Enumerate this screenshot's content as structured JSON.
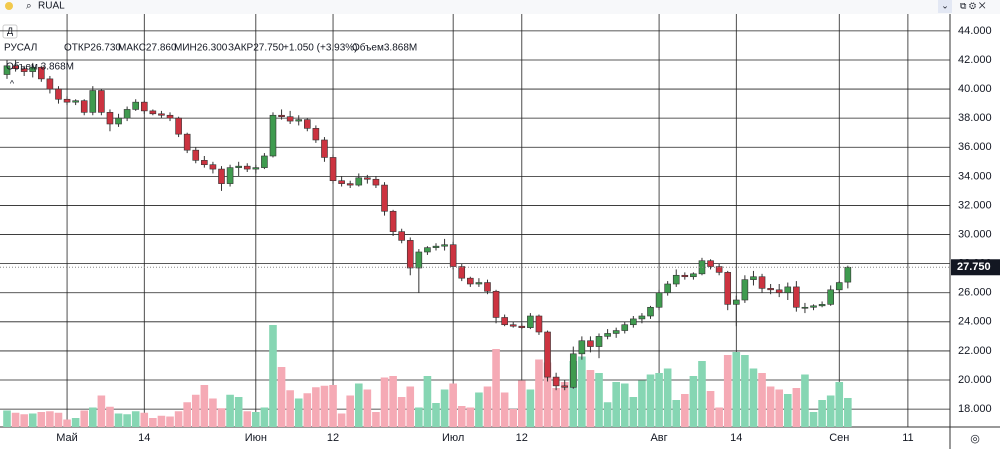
{
  "toolbar": {
    "search": "RUAL",
    "interval_button": "Д"
  },
  "legend": {
    "symbol": "РУСАЛ",
    "open": "ОТКР26.730",
    "high": "МАКС27.860",
    "low": "МИН26.300",
    "close": "ЗАКР27.750",
    "change": "+1.050 (+3.93%)",
    "volume": "Объем3.868M",
    "volume_label": "Объем 3.868M"
  },
  "chart_data": {
    "type": "candlestick",
    "name": "РУСАЛ",
    "categories": [
      null,
      null,
      null,
      null,
      null,
      null,
      null,
      "Май",
      null,
      null,
      null,
      null,
      null,
      null,
      null,
      null,
      "14",
      null,
      null,
      null,
      null,
      null,
      null,
      null,
      null,
      null,
      null,
      null,
      null,
      "Июн",
      null,
      null,
      null,
      null,
      null,
      null,
      null,
      null,
      "12",
      null,
      null,
      null,
      null,
      null,
      null,
      null,
      null,
      null,
      null,
      null,
      null,
      null,
      "Июл",
      null,
      null,
      null,
      null,
      null,
      null,
      null,
      "12",
      null,
      null,
      null,
      null,
      null,
      null,
      null,
      null,
      null,
      null,
      null,
      null,
      null,
      null,
      null,
      "Авг",
      null,
      null,
      null,
      null,
      null,
      null,
      null,
      null,
      "14",
      null,
      null,
      null,
      null,
      null,
      null,
      null,
      null,
      null,
      null,
      null,
      "Сен",
      null,
      null,
      null,
      null,
      null,
      null,
      null,
      "11"
    ],
    "open": [
      41.0,
      41.6,
      41.4,
      41.2,
      41.5,
      40.7,
      40.0,
      39.3,
      39.1,
      39.2,
      38.4,
      39.9,
      38.4,
      37.6,
      38.0,
      38.6,
      39.1,
      38.5,
      38.3,
      38.2,
      38.0,
      36.9,
      35.8,
      35.1,
      34.8,
      34.5,
      33.5,
      34.6,
      34.7,
      34.5,
      34.6,
      35.4,
      38.2,
      38.1,
      37.8,
      37.9,
      37.3,
      36.5,
      35.3,
      33.7,
      33.5,
      33.4,
      33.9,
      33.8,
      33.4,
      31.6,
      30.2,
      29.6,
      27.7,
      28.8,
      29.1,
      29.2,
      29.3,
      27.8,
      27.0,
      26.6,
      26.7,
      26.1,
      24.3,
      23.8,
      23.7,
      23.6,
      24.4,
      23.3,
      20.2,
      19.6,
      19.5,
      21.8,
      22.7,
      22.3,
      23.0,
      23.2,
      23.4,
      23.8,
      24.2,
      24.4,
      25.0,
      26.0,
      26.6,
      27.2,
      27.1,
      27.3,
      28.2,
      27.8,
      27.4,
      25.2,
      25.5,
      26.9,
      27.1,
      26.3,
      26.2,
      26.0,
      26.4,
      25.0,
      25.0,
      25.1,
      25.2,
      26.2,
      26.73,
      null,
      null,
      null,
      null,
      null,
      null,
      null
    ],
    "high": [
      42.0,
      42.0,
      41.6,
      41.8,
      41.6,
      40.9,
      40.2,
      39.5,
      39.3,
      39.3,
      40.2,
      40.0,
      38.6,
      38.3,
      38.8,
      39.3,
      39.2,
      38.6,
      38.5,
      38.4,
      38.1,
      37.0,
      36.0,
      35.4,
      35.0,
      34.7,
      34.8,
      35.0,
      34.9,
      34.8,
      35.6,
      38.4,
      38.6,
      38.5,
      38.2,
      38.0,
      37.5,
      36.7,
      35.5,
      34.0,
      33.7,
      34.2,
      34.1,
      34.0,
      33.6,
      31.7,
      30.4,
      29.8,
      29.0,
      29.2,
      29.4,
      29.7,
      29.5,
      28.0,
      27.1,
      27.0,
      26.9,
      26.2,
      24.5,
      24.0,
      23.9,
      24.6,
      24.5,
      23.4,
      20.5,
      20.0,
      22.3,
      23.0,
      23.0,
      23.2,
      23.5,
      23.6,
      24.0,
      24.4,
      24.6,
      25.1,
      26.2,
      26.8,
      27.6,
      27.4,
      27.4,
      28.4,
      28.3,
      28.0,
      27.5,
      25.8,
      27.2,
      27.5,
      27.3,
      26.6,
      26.6,
      26.7,
      26.8,
      25.3,
      25.2,
      25.4,
      26.5,
      26.8,
      27.86,
      null,
      null,
      null,
      null,
      null,
      null,
      null
    ],
    "low": [
      40.7,
      41.2,
      40.9,
      40.8,
      40.5,
      39.7,
      39.0,
      38.9,
      38.9,
      38.2,
      38.2,
      38.2,
      37.1,
      37.4,
      37.8,
      38.5,
      38.3,
      38.2,
      38.0,
      37.8,
      36.7,
      35.6,
      34.9,
      34.6,
      34.2,
      33.0,
      33.3,
      34.0,
      34.3,
      34.2,
      34.5,
      35.3,
      37.9,
      37.6,
      37.5,
      37.1,
      36.3,
      35.0,
      33.5,
      33.3,
      33.2,
      33.3,
      33.5,
      33.2,
      31.3,
      29.9,
      29.4,
      27.2,
      26.0,
      28.6,
      28.9,
      28.9,
      27.6,
      26.8,
      26.4,
      26.4,
      25.9,
      23.9,
      23.7,
      23.6,
      23.5,
      23.5,
      23.1,
      19.9,
      19.3,
      19.3,
      19.4,
      21.4,
      21.9,
      21.5,
      22.8,
      22.9,
      23.2,
      23.6,
      23.9,
      24.2,
      24.8,
      25.8,
      26.4,
      26.9,
      26.9,
      27.2,
      27.6,
      27.2,
      24.8,
      23.7,
      25.3,
      26.5,
      26.0,
      25.9,
      25.7,
      25.5,
      24.7,
      24.6,
      24.8,
      25.0,
      25.1,
      26.0,
      26.3,
      null,
      null,
      null,
      null,
      null,
      null,
      null
    ],
    "close": [
      41.6,
      41.4,
      41.2,
      41.5,
      40.7,
      40.0,
      39.3,
      39.1,
      39.2,
      38.4,
      39.9,
      38.4,
      37.6,
      38.0,
      38.6,
      39.1,
      38.5,
      38.3,
      38.2,
      38.0,
      36.9,
      35.8,
      35.1,
      34.8,
      34.5,
      33.5,
      34.6,
      34.7,
      34.5,
      34.6,
      35.4,
      38.2,
      38.1,
      37.8,
      37.9,
      37.3,
      36.5,
      35.3,
      33.7,
      33.5,
      33.4,
      33.9,
      33.8,
      33.4,
      31.6,
      30.2,
      29.6,
      27.7,
      28.8,
      29.1,
      29.2,
      29.3,
      27.8,
      27.0,
      26.6,
      26.7,
      26.1,
      24.3,
      23.8,
      23.7,
      23.6,
      24.4,
      23.3,
      20.2,
      19.6,
      19.5,
      21.8,
      22.7,
      22.3,
      23.0,
      23.2,
      23.4,
      23.8,
      24.2,
      24.4,
      25.0,
      26.0,
      26.6,
      27.2,
      27.1,
      27.3,
      28.2,
      27.8,
      27.4,
      25.2,
      25.5,
      26.9,
      27.1,
      26.3,
      26.2,
      26.0,
      26.4,
      25.0,
      25.0,
      25.1,
      25.2,
      26.2,
      26.7,
      27.75,
      null,
      null,
      null,
      null,
      null,
      null,
      null
    ],
    "volume": [
      2.2,
      1.9,
      1.7,
      1.8,
      2.0,
      2.1,
      1.9,
      1.0,
      1.2,
      2.2,
      2.6,
      4.2,
      2.7,
      1.8,
      1.7,
      2.1,
      1.9,
      1.2,
      1.5,
      1.4,
      2.1,
      3.3,
      4.3,
      5.6,
      3.8,
      2.5,
      4.3,
      4.0,
      2.1,
      2.0,
      2.6,
      13.6,
      8.0,
      4.9,
      3.8,
      4.5,
      5.3,
      5.5,
      5.6,
      1.8,
      4.2,
      5.8,
      5.0,
      2.0,
      6.6,
      6.8,
      4.0,
      5.4,
      2.6,
      6.8,
      3.2,
      5.0,
      5.8,
      2.8,
      2.6,
      4.6,
      5.4,
      10.4,
      4.6,
      2.4,
      6.2,
      5.0,
      9.0,
      8.6,
      5.2,
      6.0,
      8.8,
      9.4,
      7.6,
      7.2,
      3.3,
      6.0,
      5.8,
      4.0,
      6.2,
      7.0,
      7.2,
      7.8,
      3.6,
      4.4,
      6.8,
      8.8,
      4.8,
      2.6,
      9.6,
      10.0,
      9.6,
      7.8,
      7.2,
      5.4,
      5.0,
      4.4,
      5.2,
      7.0,
      2.0,
      3.6,
      4.2,
      6.0,
      3.868,
      null,
      null,
      null,
      null,
      null,
      null,
      null
    ],
    "last_price": {
      "value": 27.75,
      "label": "27.750"
    },
    "ylim": [
      16.77,
      45.16
    ],
    "yticks": [
      {
        "value": 18,
        "label": "18.000"
      },
      {
        "value": 20,
        "label": "20.000"
      },
      {
        "value": 22,
        "label": "22.000"
      },
      {
        "value": 24,
        "label": "24.000"
      },
      {
        "value": 26,
        "label": "26.000"
      },
      {
        "value": 28,
        "label": "28.000"
      },
      {
        "value": 30,
        "label": "30.000"
      },
      {
        "value": 32,
        "label": "32.000"
      },
      {
        "value": 34,
        "label": "34.000"
      },
      {
        "value": 36,
        "label": "36.000"
      },
      {
        "value": 38,
        "label": "38.000"
      },
      {
        "value": 40,
        "label": "40.000"
      },
      {
        "value": 42,
        "label": "42.000"
      },
      {
        "value": 44,
        "label": "44.000"
      }
    ],
    "grid": true,
    "up_color": "#3f9b4f",
    "down_color": "#cc3340",
    "volume_up_color": "#86d6b3",
    "volume_down_color": "#f5aab5"
  }
}
